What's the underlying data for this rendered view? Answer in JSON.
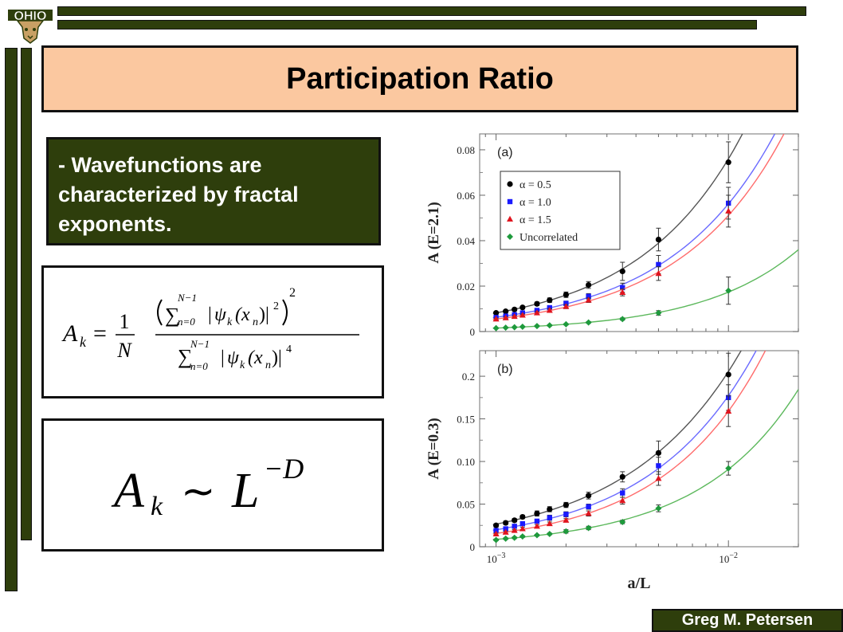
{
  "logo_text": "OHIO",
  "slide": {
    "title": "Participation Ratio",
    "bullet": "- Wavefunctions are characterized by fractal exponents.",
    "footer": "Greg M. Petersen"
  },
  "equation1": {
    "lhs": "A",
    "lhs_sub": "k",
    "frac_num": "1",
    "frac_den": "N",
    "sum_upper": "N−1",
    "sum_lower": "n=0",
    "psi": "ψ",
    "arg": "(x",
    "arg_sub": "n",
    "num_power": "2",
    "num_outer_power": "2",
    "den_power": "4"
  },
  "equation2": {
    "lhs": "A",
    "lhs_sub": "k",
    "rel": "∼",
    "base": "L",
    "exponent": "−D"
  },
  "colors": {
    "series_a05": "#000000",
    "series_a10": "#1a1aff",
    "series_a15": "#e0141e",
    "series_unc": "#1e9a3c",
    "fit_a05": "#555555",
    "fit_a10": "#6a6aff",
    "fit_a15": "#ff6b6b",
    "fit_unc": "#5cb85c"
  },
  "chart_data": [
    {
      "type": "scatter",
      "panel_label": "(a)",
      "ylabel": "A (E=2.1)",
      "xscale": "log",
      "xlim": [
        0.00085,
        0.02
      ],
      "ylim": [
        0,
        0.087
      ],
      "yticks": [
        0,
        0.02,
        0.04,
        0.06,
        0.08
      ],
      "ytick_labels": [
        "0",
        "0.02",
        "0.04",
        "0.06",
        "0.08"
      ],
      "legend_position": "top-left",
      "series": [
        {
          "name": "α = 0.5",
          "marker": "circle",
          "x": [
            0.001,
            0.0011,
            0.0012,
            0.0013,
            0.0015,
            0.0017,
            0.002,
            0.0025,
            0.0035,
            0.005,
            0.01
          ],
          "y": [
            0.0082,
            0.0089,
            0.0097,
            0.0106,
            0.0122,
            0.0138,
            0.0162,
            0.0205,
            0.0265,
            0.0405,
            0.0745
          ],
          "err": [
            0.0005,
            0.0005,
            0.0006,
            0.0006,
            0.0008,
            0.001,
            0.0012,
            0.0015,
            0.004,
            0.005,
            0.009
          ]
        },
        {
          "name": "α = 1.0",
          "marker": "square",
          "x": [
            0.001,
            0.0011,
            0.0012,
            0.0013,
            0.0015,
            0.0017,
            0.002,
            0.0025,
            0.0035,
            0.005,
            0.01
          ],
          "y": [
            0.0062,
            0.0068,
            0.0074,
            0.0082,
            0.0093,
            0.0105,
            0.0124,
            0.0155,
            0.0193,
            0.0295,
            0.0565
          ],
          "err": [
            0.0004,
            0.0004,
            0.0005,
            0.0005,
            0.0006,
            0.0008,
            0.001,
            0.0012,
            0.002,
            0.004,
            0.007
          ]
        },
        {
          "name": "α = 1.5",
          "marker": "triangle",
          "x": [
            0.001,
            0.0011,
            0.0012,
            0.0013,
            0.0015,
            0.0017,
            0.002,
            0.0025,
            0.0035,
            0.005,
            0.01
          ],
          "y": [
            0.0055,
            0.006,
            0.0066,
            0.0072,
            0.0082,
            0.0093,
            0.011,
            0.0138,
            0.0172,
            0.0255,
            0.053
          ],
          "err": [
            0.0004,
            0.0004,
            0.0004,
            0.0005,
            0.0006,
            0.0007,
            0.0009,
            0.001,
            0.0015,
            0.003,
            0.007
          ]
        },
        {
          "name": "Uncorrelated",
          "marker": "diamond",
          "x": [
            0.001,
            0.0011,
            0.0012,
            0.0013,
            0.0015,
            0.0017,
            0.002,
            0.0025,
            0.0035,
            0.005,
            0.01
          ],
          "y": [
            0.0015,
            0.0017,
            0.0019,
            0.0021,
            0.0024,
            0.0027,
            0.0032,
            0.004,
            0.0055,
            0.0082,
            0.018
          ],
          "err": [
            0.0002,
            0.0002,
            0.0002,
            0.0002,
            0.0003,
            0.0003,
            0.0003,
            0.0004,
            0.0005,
            0.001,
            0.006
          ]
        }
      ]
    },
    {
      "type": "scatter",
      "panel_label": "(b)",
      "ylabel": "A (E=0.3)",
      "xlabel": "a/L",
      "xscale": "log",
      "xlim": [
        0.00085,
        0.02
      ],
      "xticks": [
        0.001,
        0.01
      ],
      "ylim": [
        0,
        0.23
      ],
      "yticks": [
        0,
        0.05,
        0.1,
        0.15,
        0.2
      ],
      "ytick_labels": [
        "0",
        "0.05",
        "0.10",
        "0.15",
        "0.2"
      ],
      "series": [
        {
          "name": "α = 0.5",
          "marker": "circle",
          "x": [
            0.001,
            0.0011,
            0.0012,
            0.0013,
            0.0015,
            0.0017,
            0.002,
            0.0025,
            0.0035,
            0.005,
            0.01
          ],
          "y": [
            0.025,
            0.028,
            0.031,
            0.035,
            0.039,
            0.044,
            0.049,
            0.06,
            0.082,
            0.11,
            0.202
          ],
          "err": [
            0.002,
            0.002,
            0.002,
            0.002,
            0.003,
            0.003,
            0.003,
            0.004,
            0.006,
            0.014,
            0.025
          ]
        },
        {
          "name": "α = 1.0",
          "marker": "square",
          "x": [
            0.001,
            0.0011,
            0.0012,
            0.0013,
            0.0015,
            0.0017,
            0.002,
            0.0025,
            0.0035,
            0.005,
            0.01
          ],
          "y": [
            0.019,
            0.021,
            0.024,
            0.027,
            0.03,
            0.034,
            0.038,
            0.047,
            0.063,
            0.095,
            0.175
          ],
          "err": [
            0.002,
            0.002,
            0.002,
            0.002,
            0.002,
            0.003,
            0.003,
            0.003,
            0.005,
            0.01,
            0.015
          ]
        },
        {
          "name": "α = 1.5",
          "marker": "triangle",
          "x": [
            0.001,
            0.0011,
            0.0012,
            0.0013,
            0.0015,
            0.0017,
            0.002,
            0.0025,
            0.0035,
            0.005,
            0.01
          ],
          "y": [
            0.015,
            0.017,
            0.019,
            0.021,
            0.024,
            0.027,
            0.031,
            0.039,
            0.054,
            0.08,
            0.159
          ],
          "err": [
            0.001,
            0.001,
            0.001,
            0.002,
            0.002,
            0.002,
            0.002,
            0.003,
            0.004,
            0.008,
            0.018
          ]
        },
        {
          "name": "Uncorrelated",
          "marker": "diamond",
          "x": [
            0.001,
            0.0011,
            0.0012,
            0.0013,
            0.0015,
            0.0017,
            0.002,
            0.0025,
            0.0035,
            0.005,
            0.01
          ],
          "y": [
            0.008,
            0.0095,
            0.0105,
            0.012,
            0.0135,
            0.015,
            0.018,
            0.022,
            0.029,
            0.045,
            0.092
          ],
          "err": [
            0.001,
            0.001,
            0.001,
            0.001,
            0.001,
            0.001,
            0.002,
            0.002,
            0.002,
            0.004,
            0.008
          ]
        }
      ]
    }
  ]
}
